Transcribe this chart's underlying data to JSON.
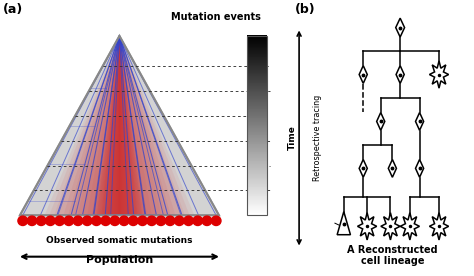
{
  "fig_width": 4.74,
  "fig_height": 2.76,
  "dpi": 100,
  "bg_color": "#ffffff",
  "panel_a_label": "(a)",
  "panel_b_label": "(b)",
  "mutation_label": "Mutation events",
  "observed_label": "Observed somatic mutations",
  "population_label": "Population",
  "time_label": "Time",
  "retro_label": "Retrospective tracing",
  "recon_label": "A Reconstructed\ncell lineage",
  "dot_color": "#dd0000",
  "n_red_dots": 22,
  "blue_color": "#3344cc",
  "gray_tri_color": "#aaaaaa",
  "red_fill_color": "#cc3333"
}
